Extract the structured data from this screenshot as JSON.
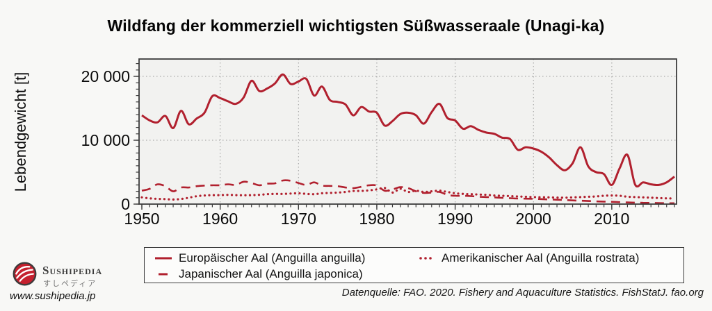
{
  "chart_data": {
    "type": "line",
    "title": "Wildfang der kommerziell wichtigsten Süßwasseraale (Unagi-ka)",
    "ylabel": "Lebendgewicht [t]",
    "xlabel": "",
    "xlim": [
      1950,
      2018
    ],
    "ylim": [
      0,
      22700
    ],
    "grid": "dotted",
    "legend_position": "bottom",
    "x_ticks": [
      1950,
      1960,
      1970,
      1980,
      1990,
      2000,
      2010
    ],
    "y_ticks": [
      {
        "value": 0,
        "label": "0"
      },
      {
        "value": 10000,
        "label": "10 000"
      },
      {
        "value": 20000,
        "label": "20 000"
      }
    ],
    "years": [
      1950,
      1951,
      1952,
      1953,
      1954,
      1955,
      1956,
      1957,
      1958,
      1959,
      1960,
      1961,
      1962,
      1963,
      1964,
      1965,
      1966,
      1967,
      1968,
      1969,
      1970,
      1971,
      1972,
      1973,
      1974,
      1975,
      1976,
      1977,
      1978,
      1979,
      1980,
      1981,
      1982,
      1983,
      1984,
      1985,
      1986,
      1987,
      1988,
      1989,
      1990,
      1991,
      1992,
      1993,
      1994,
      1995,
      1996,
      1997,
      1998,
      1999,
      2000,
      2001,
      2002,
      2003,
      2004,
      2005,
      2006,
      2007,
      2008,
      2009,
      2010,
      2011,
      2012,
      2013,
      2014,
      2015,
      2016,
      2017,
      2018
    ],
    "series": [
      {
        "name": "Europäischer Aal (Anguilla anguilla)",
        "line_style": "solid",
        "color": "#b1202e",
        "values": [
          13900,
          13100,
          12800,
          13800,
          11900,
          14600,
          12500,
          13400,
          14300,
          16900,
          16600,
          16100,
          15700,
          16700,
          19300,
          17700,
          18100,
          18900,
          20300,
          18800,
          19200,
          19600,
          17000,
          18400,
          16300,
          16000,
          15600,
          13900,
          15200,
          14500,
          14300,
          12300,
          13000,
          14100,
          14300,
          13900,
          12600,
          14400,
          15700,
          13500,
          13100,
          11800,
          12200,
          11600,
          11200,
          11000,
          10400,
          10200,
          8500,
          8900,
          8700,
          8200,
          7300,
          6100,
          5300,
          6400,
          8900,
          5900,
          5000,
          4700,
          3000,
          5600,
          7700,
          3000,
          3400,
          3100,
          3000,
          3400,
          4300
        ]
      },
      {
        "name": "Japanischer Aal (Anguilla japonica)",
        "line_style": "dashed",
        "color": "#b1202e",
        "values": [
          2100,
          2400,
          3100,
          2800,
          2000,
          2600,
          2600,
          2800,
          2900,
          2950,
          2950,
          3100,
          3000,
          3500,
          3300,
          2950,
          3200,
          3250,
          3700,
          3650,
          3300,
          3000,
          3400,
          2900,
          2850,
          2800,
          2600,
          2500,
          2700,
          2950,
          2900,
          2100,
          2300,
          2650,
          2500,
          2000,
          1750,
          1800,
          1900,
          1450,
          1300,
          1300,
          1250,
          1150,
          1100,
          1050,
          980,
          920,
          870,
          850,
          830,
          780,
          730,
          680,
          640,
          580,
          530,
          480,
          430,
          390,
          360,
          300,
          260,
          230,
          200,
          180,
          160,
          140,
          130
        ]
      },
      {
        "name": "Amerikanischer Aal (Anguilla rostrata)",
        "line_style": "dotted",
        "color": "#b1202e",
        "values": [
          1050,
          900,
          820,
          780,
          720,
          800,
          1000,
          1230,
          1350,
          1400,
          1400,
          1450,
          1400,
          1380,
          1400,
          1450,
          1550,
          1600,
          1600,
          1650,
          1700,
          1600,
          1550,
          1700,
          1750,
          1800,
          1900,
          2050,
          2060,
          2150,
          2300,
          2530,
          1800,
          2400,
          1900,
          2100,
          1900,
          2000,
          2100,
          1900,
          1700,
          1600,
          1550,
          1500,
          1450,
          1350,
          1300,
          1250,
          1200,
          1150,
          1100,
          1080,
          1050,
          1020,
          1000,
          1050,
          1100,
          1150,
          1200,
          1300,
          1350,
          1300,
          1150,
          1100,
          1050,
          1000,
          950,
          900,
          870
        ]
      }
    ]
  },
  "legend": {
    "items": [
      {
        "label": "Europäischer Aal (Anguilla anguilla)"
      },
      {
        "label": "Japanischer Aal (Anguilla japonica)"
      },
      {
        "label": "Amerikanischer Aal (Anguilla rostrata)"
      }
    ]
  },
  "footer": {
    "brand_name": "Sushipedia",
    "brand_kana": "すしペディア",
    "brand_url": "www.sushipedia.jp",
    "source": "Datenquelle: FAO. 2020. Fishery and Aquaculture Statistics. FishStatJ. fao.org"
  },
  "colors": {
    "line_red": "#b1202e",
    "frame": "#3c3c3c",
    "grid": "#9a9a9a",
    "plot_bg": "#f2f2f0",
    "page_bg": "#f8f8f6"
  }
}
